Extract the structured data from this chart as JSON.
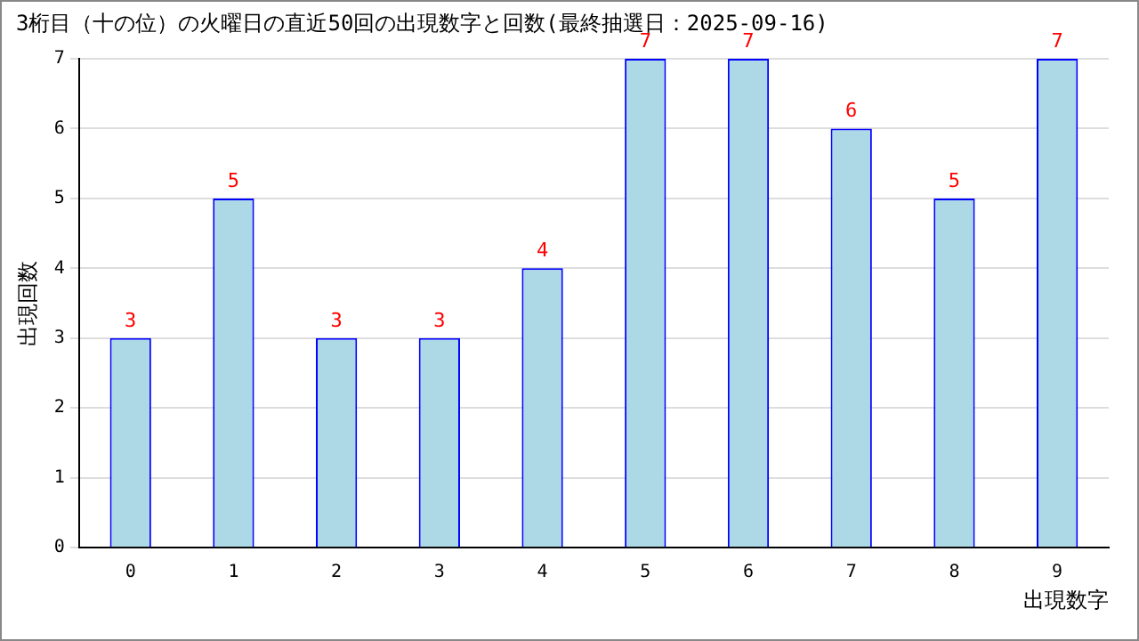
{
  "chart_data": {
    "type": "bar",
    "title": "3桁目（十の位）の火曜日の直近50回の出現数字と回数(最終抽選日：2025-09-16)",
    "xlabel": "出現数字",
    "ylabel": "出現回数",
    "categories": [
      "0",
      "1",
      "2",
      "3",
      "4",
      "5",
      "6",
      "7",
      "8",
      "9"
    ],
    "values": [
      3,
      5,
      3,
      3,
      4,
      7,
      7,
      6,
      5,
      7
    ],
    "color": "#add8e6",
    "ylim": [
      0,
      7
    ],
    "yticks": [
      0,
      1,
      2,
      3,
      4,
      5,
      6,
      7
    ],
    "grid": "y",
    "data_labels": true,
    "legend": false
  }
}
